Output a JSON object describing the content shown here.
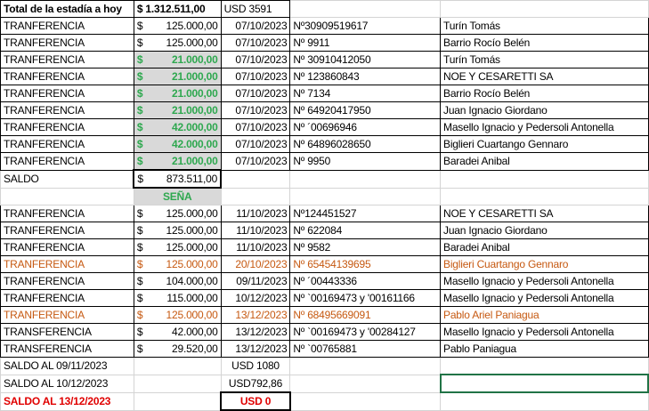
{
  "header": {
    "label": "Total de la estadía a hoy",
    "amount": "$ 1.312.511,00",
    "usd": "USD 3591"
  },
  "transfers_1": [
    {
      "type": "TRANFERENCIA",
      "currency": "$",
      "amount": "125.000,00",
      "date": "07/10/2023",
      "ref": "Nº30909519617",
      "name": "Turín Tomás",
      "highlight": false
    },
    {
      "type": "TRANFERENCIA",
      "currency": "$",
      "amount": "125.000,00",
      "date": "07/10/2023",
      "ref": "Nº 9911",
      "name": "Barrio Rocío Belén",
      "highlight": false
    },
    {
      "type": "TRANFERENCIA",
      "currency": "$",
      "amount": "21.000,00",
      "date": "07/10/2023",
      "ref": "Nº 30910412050",
      "name": "Turín Tomás",
      "highlight": true
    },
    {
      "type": "TRANFERENCIA",
      "currency": "$",
      "amount": "21.000,00",
      "date": "07/10/2023",
      "ref": "Nº 123860843",
      "name": "NOE Y CESARETTI SA",
      "highlight": true
    },
    {
      "type": "TRANFERENCIA",
      "currency": "$",
      "amount": "21.000,00",
      "date": "07/10/2023",
      "ref": "Nº 7134",
      "name": "Barrio Rocío Belén",
      "highlight": true
    },
    {
      "type": "TRANFERENCIA",
      "currency": "$",
      "amount": "21.000,00",
      "date": "07/10/2023",
      "ref": "Nº 64920417950",
      "name": "Juan Ignacio Giordano",
      "highlight": true
    },
    {
      "type": "TRANFERENCIA",
      "currency": "$",
      "amount": "42.000,00",
      "date": "07/10/2023",
      "ref": "Nº ´00696946",
      "name": "Masello Ignacio y Pedersoli Antonella",
      "highlight": true
    },
    {
      "type": "TRANFERENCIA",
      "currency": "$",
      "amount": "42.000,00",
      "date": "07/10/2023",
      "ref": "Nº  64896028650",
      "name": "Biglieri Cuartango Gennaro",
      "highlight": true
    },
    {
      "type": "TRANFERENCIA",
      "currency": "$",
      "amount": "21.000,00",
      "date": "07/10/2023",
      "ref": "Nº 9950",
      "name": "Baradei Anibal",
      "highlight": true
    }
  ],
  "saldo": {
    "label": "SALDO",
    "currency": "$",
    "amount": "873.511,00"
  },
  "sena": "SEÑA",
  "transfers_2": [
    {
      "type": "TRANFERENCIA",
      "currency": "$",
      "amount": "125.000,00",
      "date": "11/10/2023",
      "ref": "Nº124451527",
      "name": "NOE Y CESARETTI SA",
      "orange": false
    },
    {
      "type": "TRANFERENCIA",
      "currency": "$",
      "amount": "125.000,00",
      "date": "11/10/2023",
      "ref": "Nº 622084",
      "name": "Juan Ignacio Giordano",
      "orange": false
    },
    {
      "type": "TRANFERENCIA",
      "currency": "$",
      "amount": "125.000,00",
      "date": "11/10/2023",
      "ref": "Nº 9582",
      "name": "Baradei Anibal",
      "orange": false
    },
    {
      "type": "TRANFERENCIA",
      "currency": "$",
      "amount": "125.000,00",
      "date": "20/10/2023",
      "ref": "Nº 65454139695",
      "name": "Biglieri Cuartango Gennaro",
      "orange": true
    },
    {
      "type": "TRANFERENCIA",
      "currency": "$",
      "amount": "104.000,00",
      "date": "09/11/2023",
      "ref": "Nº ´00443336",
      "name": "Masello Ignacio y Pedersoli Antonella",
      "orange": false
    },
    {
      "type": "TRANFERENCIA",
      "currency": "$",
      "amount": "115.000,00",
      "date": "10/12/2023",
      "ref": "Nº `00169473 y '00161166",
      "name": "Masello Ignacio y Pedersoli Antonella",
      "orange": false
    },
    {
      "type": "TRANFERENCIA",
      "currency": "$",
      "amount": "125.000,00",
      "date": "13/12/2023",
      "ref": "Nº 68495669091",
      "name": "Pablo Ariel Paniagua",
      "orange": true
    },
    {
      "type": "TRANSFERENCIA",
      "currency": "$",
      "amount": "42.000,00",
      "date": "13/12/2023",
      "ref": "Nº `00169473 y '00284127",
      "name": "Masello Ignacio y Pedersoli Antonella",
      "orange": false
    },
    {
      "type": "TRANSFERENCIA",
      "currency": "$",
      "amount": "29.520,00",
      "date": "13/12/2023",
      "ref": "Nº `00765881",
      "name": "Pablo Paniagua",
      "orange": false
    }
  ],
  "balances": [
    {
      "label": "SALDO AL 09/11/2023",
      "value": "USD 1080"
    },
    {
      "label": "SALDO AL 10/12/2023",
      "value": "USD792,86"
    },
    {
      "label": "SALDO AL 13/12/2023",
      "value": "USD 0"
    }
  ],
  "colors": {
    "green": "#2ea84f",
    "orange": "#c65911",
    "red": "#e00000",
    "highlight_fill": "#d9d9d9",
    "selection": "#217346"
  }
}
